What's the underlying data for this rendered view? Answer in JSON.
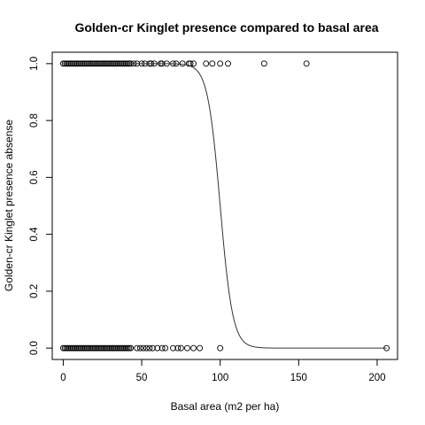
{
  "chart_data": {
    "type": "scatter",
    "title": "Golden-cr Kinglet presence compared to basal area",
    "xlabel": "Basal area (m2 per ha)",
    "ylabel": "Golden-cr Kinglet presence absense",
    "xlim": [
      -7,
      213
    ],
    "ylim": [
      -0.04,
      1.04
    ],
    "x_ticks": [
      0,
      50,
      100,
      150,
      200
    ],
    "y_ticks": [
      0.0,
      0.2,
      0.4,
      0.6,
      0.8,
      1.0
    ],
    "x_tick_labels": [
      "0",
      "50",
      "100",
      "150",
      "200"
    ],
    "y_tick_labels": [
      "0.0",
      "0.2",
      "0.4",
      "0.6",
      "0.8",
      "1.0"
    ],
    "grid": false,
    "legend": "none",
    "series": [
      {
        "kind": "points",
        "marker": "open-circle",
        "color": "#000000",
        "points": [
          [
            0,
            1
          ],
          [
            1,
            1
          ],
          [
            2,
            1
          ],
          [
            3,
            1
          ],
          [
            4,
            1
          ],
          [
            5,
            1
          ],
          [
            6,
            1
          ],
          [
            7,
            1
          ],
          [
            8,
            1
          ],
          [
            9,
            1
          ],
          [
            10,
            1
          ],
          [
            11,
            1
          ],
          [
            12,
            1
          ],
          [
            13,
            1
          ],
          [
            14,
            1
          ],
          [
            15,
            1
          ],
          [
            16,
            1
          ],
          [
            17,
            1
          ],
          [
            18,
            1
          ],
          [
            19,
            1
          ],
          [
            20,
            1
          ],
          [
            21,
            1
          ],
          [
            22,
            1
          ],
          [
            23,
            1
          ],
          [
            24,
            1
          ],
          [
            25,
            1
          ],
          [
            26,
            1
          ],
          [
            27,
            1
          ],
          [
            28,
            1
          ],
          [
            29,
            1
          ],
          [
            30,
            1
          ],
          [
            31,
            1
          ],
          [
            32,
            1
          ],
          [
            33,
            1
          ],
          [
            34,
            1
          ],
          [
            35,
            1
          ],
          [
            36,
            1
          ],
          [
            37,
            1
          ],
          [
            38,
            1
          ],
          [
            39,
            1
          ],
          [
            40,
            1
          ],
          [
            41,
            1
          ],
          [
            42,
            1
          ],
          [
            43,
            1
          ],
          [
            45,
            1
          ],
          [
            47,
            1
          ],
          [
            50,
            1
          ],
          [
            52,
            1
          ],
          [
            55,
            1
          ],
          [
            56,
            1
          ],
          [
            58,
            1
          ],
          [
            62,
            1
          ],
          [
            63,
            1
          ],
          [
            66,
            1
          ],
          [
            70,
            1
          ],
          [
            72,
            1
          ],
          [
            76,
            1
          ],
          [
            80,
            1
          ],
          [
            81,
            1
          ],
          [
            83,
            1
          ],
          [
            91,
            1
          ],
          [
            95,
            1
          ],
          [
            100,
            1
          ],
          [
            105,
            1
          ],
          [
            128,
            1
          ],
          [
            155,
            1
          ],
          [
            0,
            0
          ],
          [
            1,
            0
          ],
          [
            2,
            0
          ],
          [
            3,
            0
          ],
          [
            4,
            0
          ],
          [
            5,
            0
          ],
          [
            6,
            0
          ],
          [
            7,
            0
          ],
          [
            8,
            0
          ],
          [
            9,
            0
          ],
          [
            10,
            0
          ],
          [
            11,
            0
          ],
          [
            12,
            0
          ],
          [
            13,
            0
          ],
          [
            14,
            0
          ],
          [
            15,
            0
          ],
          [
            16,
            0
          ],
          [
            17,
            0
          ],
          [
            18,
            0
          ],
          [
            19,
            0
          ],
          [
            20,
            0
          ],
          [
            21,
            0
          ],
          [
            22,
            0
          ],
          [
            23,
            0
          ],
          [
            24,
            0
          ],
          [
            25,
            0
          ],
          [
            26,
            0
          ],
          [
            27,
            0
          ],
          [
            28,
            0
          ],
          [
            29,
            0
          ],
          [
            30,
            0
          ],
          [
            31,
            0
          ],
          [
            32,
            0
          ],
          [
            33,
            0
          ],
          [
            34,
            0
          ],
          [
            35,
            0
          ],
          [
            36,
            0
          ],
          [
            37,
            0
          ],
          [
            38,
            0
          ],
          [
            39,
            0
          ],
          [
            40,
            0
          ],
          [
            41,
            0
          ],
          [
            42,
            0
          ],
          [
            43,
            0
          ],
          [
            47,
            0
          ],
          [
            49,
            0
          ],
          [
            51,
            0
          ],
          [
            53,
            0
          ],
          [
            55,
            0
          ],
          [
            57,
            0
          ],
          [
            60,
            0
          ],
          [
            63,
            0
          ],
          [
            65,
            0
          ],
          [
            70,
            0
          ],
          [
            73,
            0
          ],
          [
            75,
            0
          ],
          [
            79,
            0
          ],
          [
            83,
            0
          ],
          [
            87,
            0
          ],
          [
            100,
            0
          ],
          [
            206,
            0
          ]
        ]
      },
      {
        "kind": "logistic-fit-line",
        "color": "#000000",
        "intercept": 25.0,
        "slope": -0.25,
        "x_range": [
          0,
          206
        ]
      }
    ]
  }
}
